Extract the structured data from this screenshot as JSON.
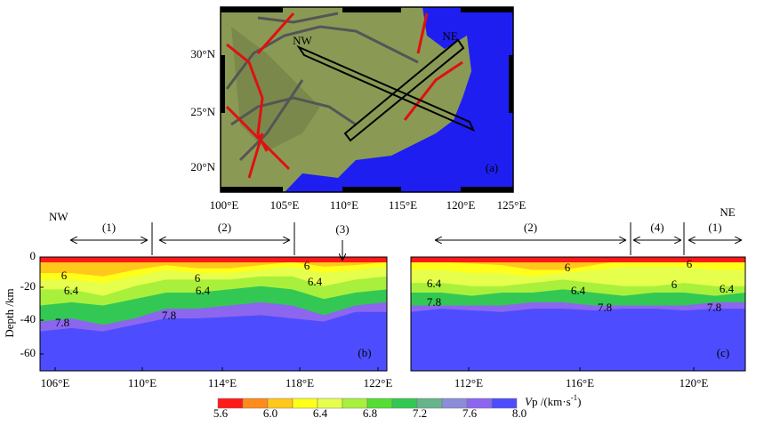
{
  "map": {
    "label": "(a)",
    "profile_ends": [
      "NW",
      "NE"
    ],
    "xticks": [
      "100°E",
      "105°E",
      "110°E",
      "115°E",
      "120°E",
      "125°E"
    ],
    "yticks": [
      "30°N",
      "25°N",
      "20°N"
    ]
  },
  "sections": [
    {
      "label": "(b)",
      "end_label": "NW",
      "ylabel": "Depth /km",
      "yticks": [
        "0",
        "-20",
        "-40",
        "-60"
      ],
      "xticks": [
        "106°E",
        "110°E",
        "114°E",
        "118°E",
        "122°E"
      ],
      "segments": [
        "(1)",
        "(2)",
        "(3)"
      ],
      "contour_labels": [
        "6",
        "6.4",
        "7.8",
        "6",
        "6.4",
        "7.8",
        "6",
        "6.4"
      ]
    },
    {
      "label": "(c)",
      "end_label": "NE",
      "xticks": [
        "112°E",
        "116°E",
        "120°E"
      ],
      "segments": [
        "(2)",
        "(4)",
        "(1)"
      ],
      "contour_labels": [
        "6.4",
        "7.8",
        "6",
        "6.4",
        "7.8",
        "6",
        "6",
        "6.4",
        "7.8"
      ]
    }
  ],
  "colorbar": {
    "label_v": "V",
    "label_rest": "p /(km·s",
    "label_sup": "-1",
    "label_close": ")",
    "ticks": [
      "5.6",
      "6.0",
      "6.4",
      "6.8",
      "7.2",
      "7.6",
      "8.0"
    ],
    "colors": [
      "#ff1a1a",
      "#ff8c1a",
      "#ffc81a",
      "#ffff1a",
      "#e6ff4d",
      "#a8f03c",
      "#55dd33",
      "#33c853",
      "#66b38c",
      "#8c8cd9",
      "#8c66ee",
      "#4d4dff"
    ]
  }
}
